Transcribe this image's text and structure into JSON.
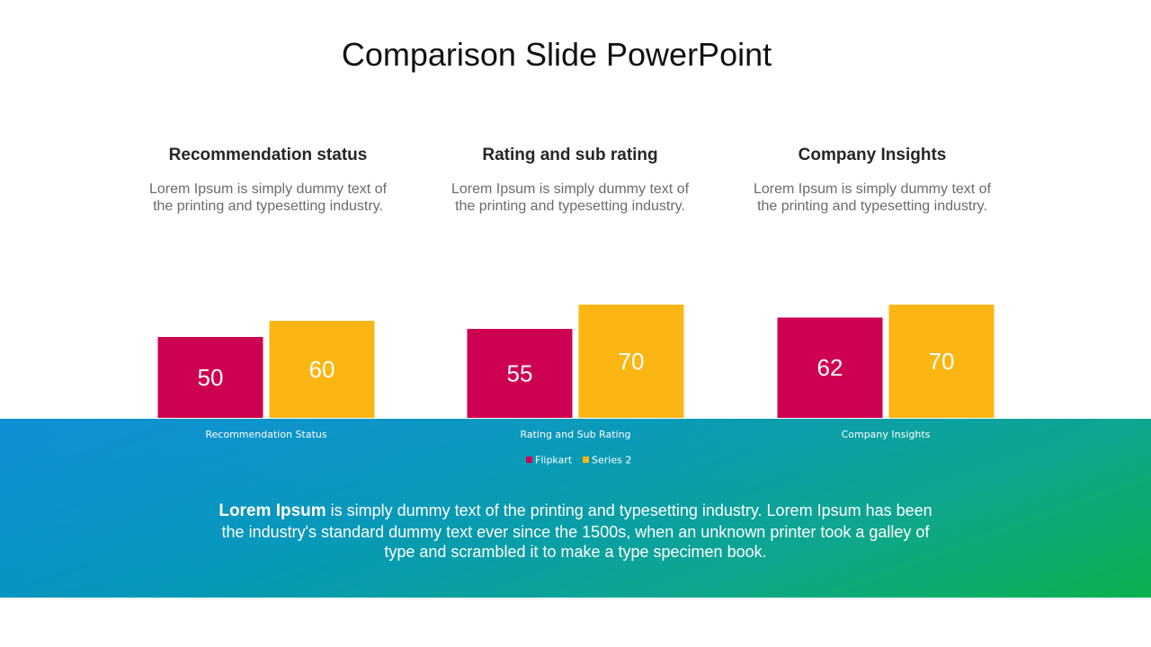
{
  "slide": {
    "title": "Comparison Slide PowerPoint"
  },
  "columns": [
    {
      "heading": "Recommendation status",
      "description": "Lorem Ipsum is simply dummy text of the printing and typesetting industry."
    },
    {
      "heading": "Rating and sub rating",
      "description": "Lorem Ipsum is simply dummy text of the printing and typesetting industry."
    },
    {
      "heading": "Company Insights",
      "description": "Lorem Ipsum is simply dummy text of the printing and typesetting industry."
    }
  ],
  "footer": {
    "bold_lead": "Lorem Ipsum",
    "text": " is simply dummy text of the printing and typesetting industry. Lorem Ipsum has been the industry's standard dummy text ever since the 1500s, when an unknown printer took a galley of type and scrambled it to make a type specimen book."
  },
  "colors": {
    "flipkart": "#cd0051",
    "series2": "#fbb614",
    "band_start": "#0189d5",
    "band_end": "#0bb14f"
  },
  "chart_data": {
    "type": "bar",
    "categories": [
      "Recommendation Status",
      "Rating and Sub Rating",
      "Company Insights"
    ],
    "series": [
      {
        "name": "Flipkart",
        "values": [
          50,
          55,
          62
        ],
        "color": "#cd0051"
      },
      {
        "name": "Series 2",
        "values": [
          60,
          70,
          70
        ],
        "color": "#fbb614"
      }
    ],
    "ylim": [
      0,
      70
    ],
    "grid": false,
    "legend": "bottom",
    "data_labels": true
  }
}
